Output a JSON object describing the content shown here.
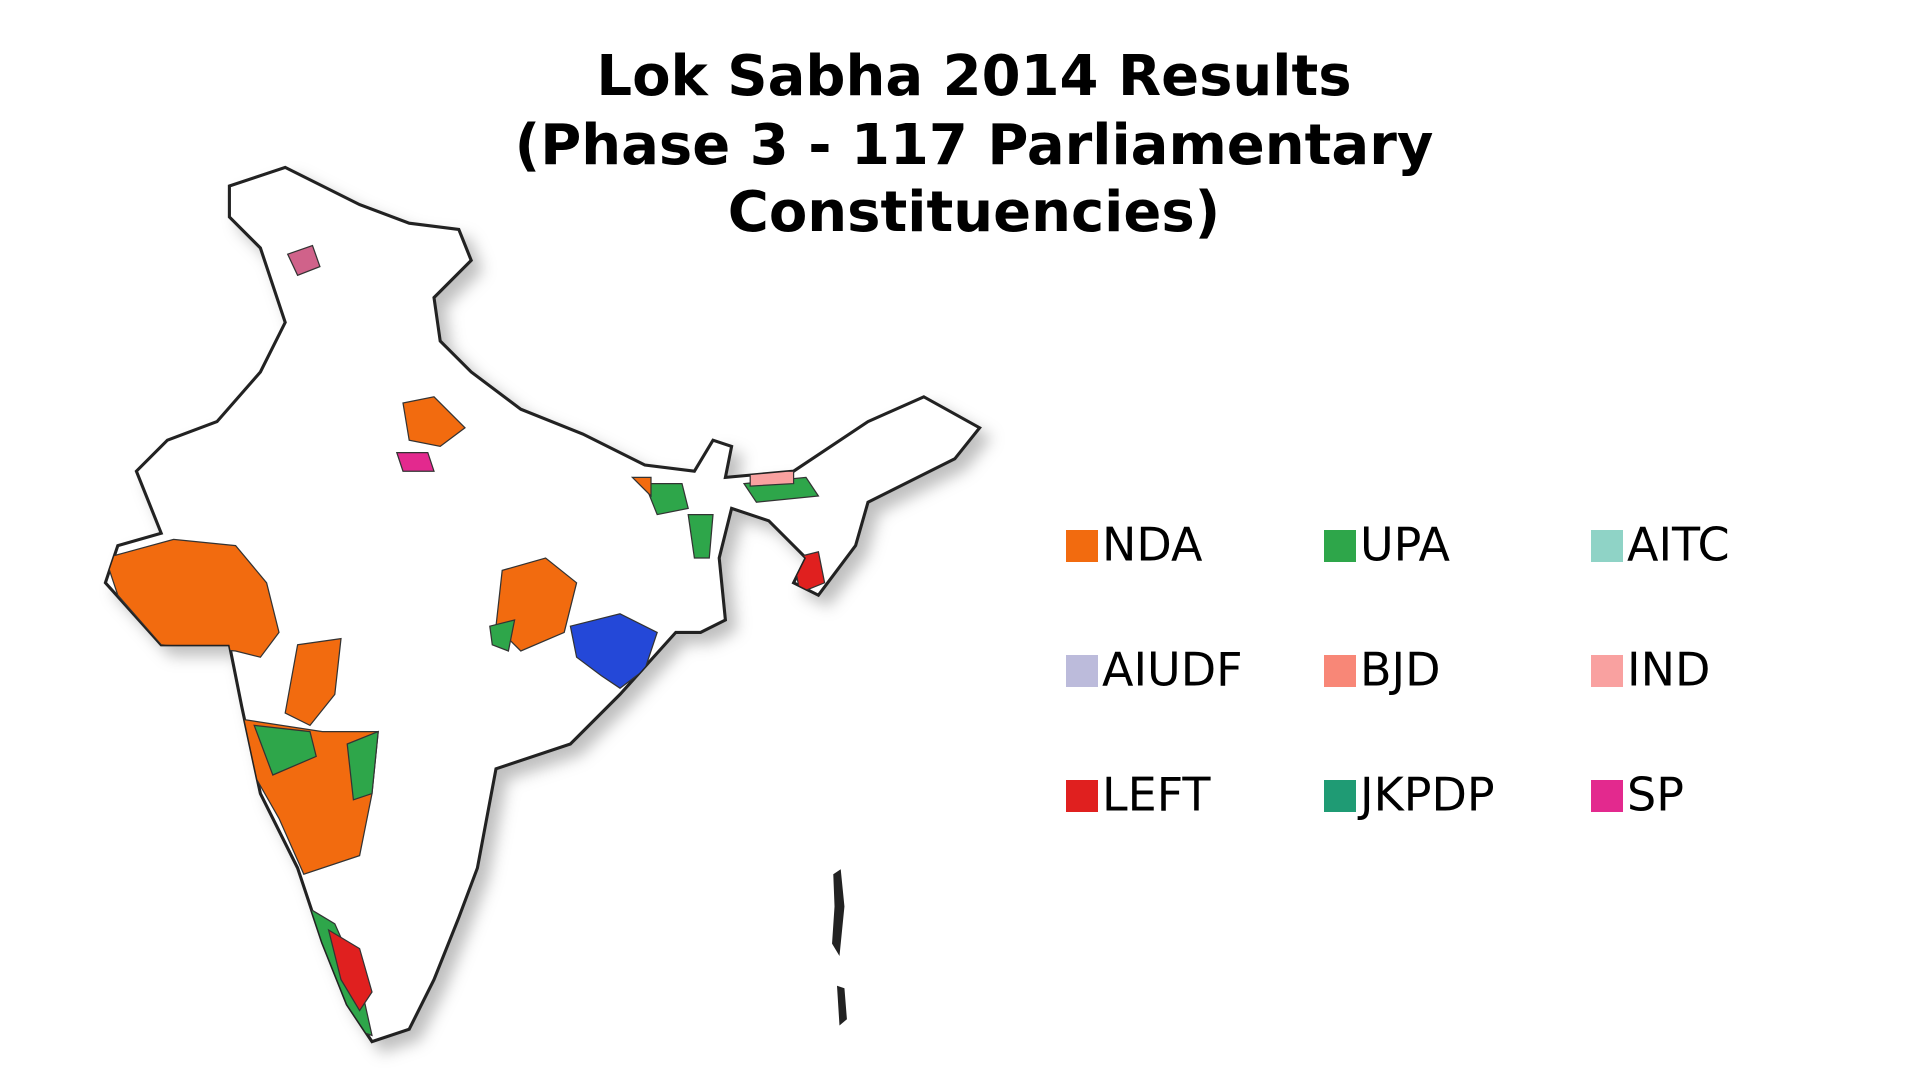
{
  "title": [
    "Lok Sabha 2014 Results",
    "(Phase 3 - 117 Parliamentary",
    "Constituencies)"
  ],
  "legend": [
    {
      "label": "NDA",
      "color": "#f26b0f"
    },
    {
      "label": "UPA",
      "color": "#2ea64a"
    },
    {
      "label": "AITC",
      "color": "#8fd3c6"
    },
    {
      "label": "AIUDF",
      "color": "#bcbbdb"
    },
    {
      "label": "BJD",
      "color": "#f88777"
    },
    {
      "label": "IND",
      "color": "#f9a1a0"
    },
    {
      "label": "LEFT",
      "color": "#e0201f"
    },
    {
      "label": "JKPDP",
      "color": "#1f9b74"
    },
    {
      "label": "SP",
      "color": "#e3298e"
    }
  ]
}
